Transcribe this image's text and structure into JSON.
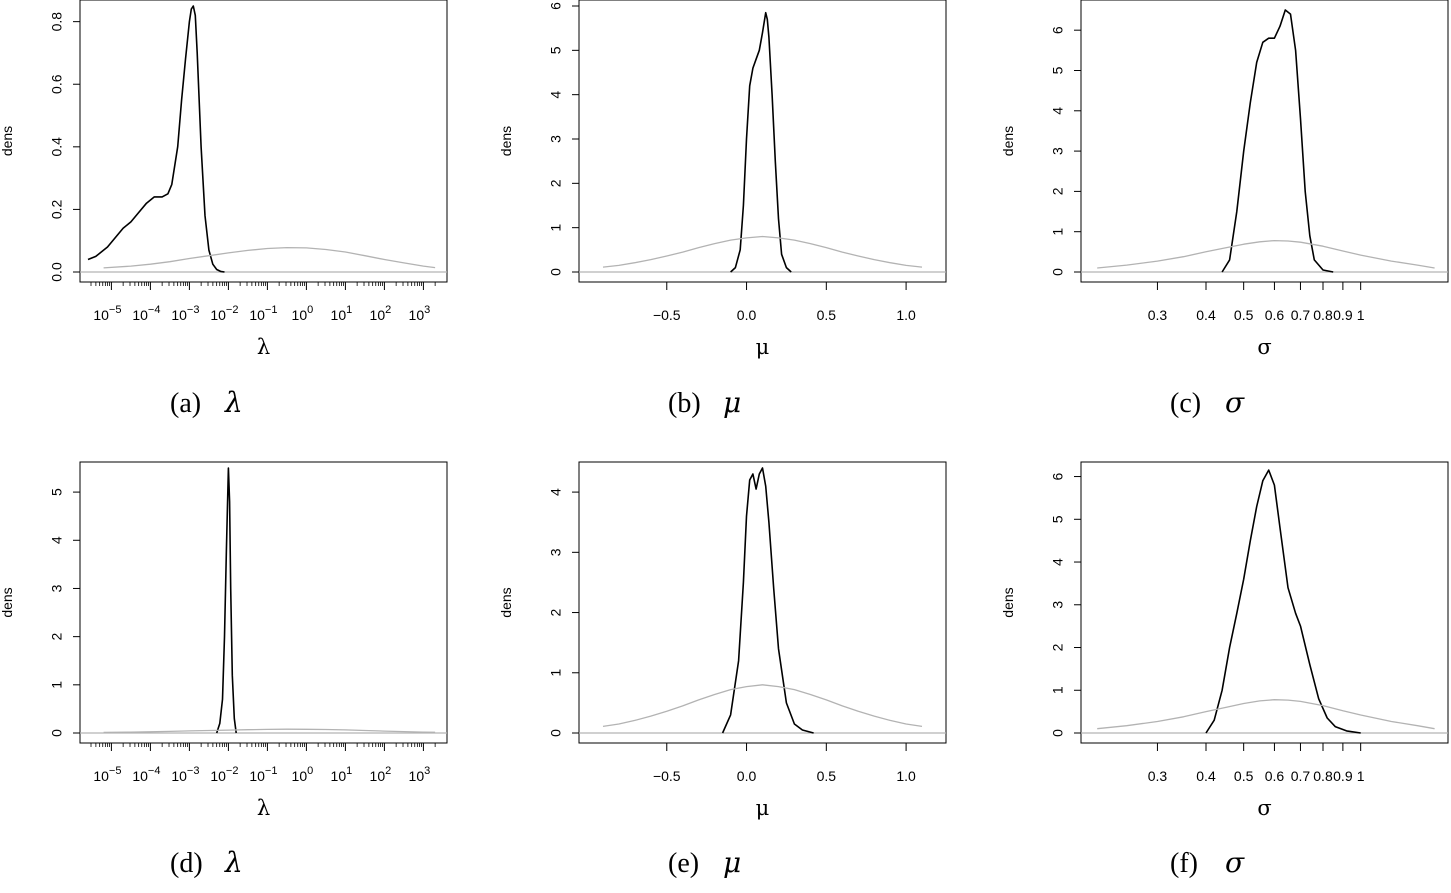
{
  "chart_data": [
    {
      "type": "line",
      "panel": "a",
      "caption_label": "(a)",
      "caption_symbol": "λ",
      "xlabel": "λ",
      "ylabel": "dens",
      "xscale": "log10",
      "xlim": [
        -5.6,
        3.4
      ],
      "ylim": [
        0,
        0.85
      ],
      "yticks": [
        0.0,
        0.2,
        0.4,
        0.6,
        0.8
      ],
      "ytick_labels": [
        "0.0",
        "0.2",
        "0.4",
        "0.6",
        "0.8"
      ],
      "xticks": [
        -5,
        -4,
        -3,
        -2,
        -1,
        0,
        1,
        2,
        3
      ],
      "xtick_bases": [
        "10",
        "10",
        "10",
        "10",
        "10",
        "10",
        "10",
        "10",
        "10"
      ],
      "xtick_exps": [
        "−5",
        "−4",
        "−3",
        "−2",
        "−1",
        "0",
        "1",
        "2",
        "3"
      ],
      "series": [
        {
          "role": "posterior",
          "color": "#000000",
          "x": [
            -5.6,
            -5.4,
            -5.1,
            -4.9,
            -4.7,
            -4.5,
            -4.3,
            -4.1,
            -3.9,
            -3.7,
            -3.55,
            -3.45,
            -3.3,
            -3.2,
            -3.1,
            -3.0,
            -2.95,
            -2.9,
            -2.85,
            -2.8,
            -2.7,
            -2.6,
            -2.5,
            -2.4,
            -2.3,
            -2.2,
            -2.1
          ],
          "y": [
            0.04,
            0.05,
            0.08,
            0.11,
            0.14,
            0.16,
            0.19,
            0.22,
            0.24,
            0.24,
            0.25,
            0.28,
            0.4,
            0.55,
            0.68,
            0.8,
            0.84,
            0.85,
            0.82,
            0.7,
            0.4,
            0.18,
            0.07,
            0.025,
            0.008,
            0.002,
            0.0
          ]
        },
        {
          "role": "prior",
          "color": "#b3b3b3",
          "x": [
            -5.2,
            -4.5,
            -4,
            -3.5,
            -3,
            -2.5,
            -2,
            -1.5,
            -1,
            -0.5,
            0,
            0.5,
            1,
            1.5,
            2,
            2.5,
            3,
            3.3
          ],
          "y": [
            0.013,
            0.019,
            0.025,
            0.033,
            0.043,
            0.052,
            0.061,
            0.069,
            0.075,
            0.078,
            0.077,
            0.072,
            0.064,
            0.052,
            0.04,
            0.029,
            0.019,
            0.014
          ]
        }
      ]
    },
    {
      "type": "line",
      "panel": "b",
      "caption_label": "(b)",
      "caption_symbol": "μ",
      "xlabel": "μ",
      "ylabel": "dens",
      "xscale": "linear",
      "xlim": [
        -1.0,
        1.2
      ],
      "ylim": [
        0,
        6
      ],
      "yticks": [
        0,
        1,
        2,
        3,
        4,
        5,
        6
      ],
      "ytick_labels": [
        "0",
        "1",
        "2",
        "3",
        "4",
        "5",
        "6"
      ],
      "xticks": [
        -0.5,
        0.0,
        0.5,
        1.0
      ],
      "xtick_labels": [
        "−0.5",
        "0.0",
        "0.5",
        "1.0"
      ],
      "series": [
        {
          "role": "posterior",
          "color": "#000000",
          "x": [
            -0.1,
            -0.07,
            -0.04,
            -0.02,
            0.0,
            0.02,
            0.04,
            0.06,
            0.08,
            0.1,
            0.12,
            0.13,
            0.14,
            0.16,
            0.18,
            0.2,
            0.22,
            0.25,
            0.28
          ],
          "y": [
            0.0,
            0.1,
            0.5,
            1.5,
            3.0,
            4.2,
            4.6,
            4.8,
            5.0,
            5.4,
            5.85,
            5.7,
            5.3,
            4.0,
            2.5,
            1.2,
            0.4,
            0.1,
            0.0
          ]
        },
        {
          "role": "prior",
          "color": "#b3b3b3",
          "x": [
            -0.9,
            -0.8,
            -0.7,
            -0.6,
            -0.5,
            -0.4,
            -0.3,
            -0.2,
            -0.1,
            0,
            0.1,
            0.2,
            0.3,
            0.4,
            0.5,
            0.6,
            0.7,
            0.8,
            0.9,
            1.0,
            1.1
          ],
          "y": [
            0.11,
            0.15,
            0.21,
            0.28,
            0.36,
            0.45,
            0.55,
            0.64,
            0.72,
            0.77,
            0.8,
            0.77,
            0.72,
            0.64,
            0.55,
            0.45,
            0.36,
            0.28,
            0.21,
            0.15,
            0.11
          ]
        }
      ]
    },
    {
      "type": "line",
      "panel": "c",
      "caption_label": "(c)",
      "caption_symbol": "σ",
      "xlabel": "σ",
      "ylabel": "dens",
      "xscale": "log",
      "xlim": [
        0.2,
        1.6
      ],
      "ylim": [
        0,
        6.6
      ],
      "yticks": [
        0,
        1,
        2,
        3,
        4,
        5,
        6
      ],
      "ytick_labels": [
        "0",
        "1",
        "2",
        "3",
        "4",
        "5",
        "6"
      ],
      "xticks": [
        0.3,
        0.4,
        0.5,
        0.6,
        0.7,
        0.8,
        0.9,
        1
      ],
      "xtick_labels": [
        "0.3",
        "0.4",
        "0.5",
        "0.6",
        "0.7",
        "0.8",
        "0.9",
        "1"
      ],
      "series": [
        {
          "role": "posterior",
          "color": "#000000",
          "x": [
            0.44,
            0.46,
            0.48,
            0.5,
            0.52,
            0.54,
            0.56,
            0.58,
            0.6,
            0.62,
            0.64,
            0.66,
            0.68,
            0.7,
            0.72,
            0.74,
            0.76,
            0.8,
            0.85
          ],
          "y": [
            0.0,
            0.3,
            1.5,
            3.0,
            4.2,
            5.2,
            5.7,
            5.8,
            5.8,
            6.1,
            6.5,
            6.4,
            5.5,
            3.8,
            2.0,
            0.9,
            0.3,
            0.05,
            0.0
          ]
        },
        {
          "role": "prior",
          "color": "#b3b3b3",
          "x": [
            0.21,
            0.25,
            0.3,
            0.35,
            0.4,
            0.45,
            0.5,
            0.55,
            0.6,
            0.65,
            0.7,
            0.8,
            0.9,
            1.0,
            1.2,
            1.4,
            1.55
          ],
          "y": [
            0.1,
            0.17,
            0.27,
            0.38,
            0.5,
            0.6,
            0.69,
            0.75,
            0.78,
            0.77,
            0.74,
            0.64,
            0.52,
            0.42,
            0.27,
            0.17,
            0.1
          ]
        }
      ]
    },
    {
      "type": "line",
      "panel": "d",
      "caption_label": "(d)",
      "caption_symbol": "λ",
      "xlabel": "λ",
      "ylabel": "dens",
      "xscale": "log10",
      "xlim": [
        -5.6,
        3.4
      ],
      "ylim": [
        0,
        5.5
      ],
      "yticks": [
        0,
        1,
        2,
        3,
        4,
        5
      ],
      "ytick_labels": [
        "0",
        "1",
        "2",
        "3",
        "4",
        "5"
      ],
      "xticks": [
        -5,
        -4,
        -3,
        -2,
        -1,
        0,
        1,
        2,
        3
      ],
      "xtick_bases": [
        "10",
        "10",
        "10",
        "10",
        "10",
        "10",
        "10",
        "10",
        "10"
      ],
      "xtick_exps": [
        "−5",
        "−4",
        "−3",
        "−2",
        "−1",
        "0",
        "1",
        "2",
        "3"
      ],
      "series": [
        {
          "role": "posterior",
          "color": "#000000",
          "x": [
            -2.3,
            -2.22,
            -2.15,
            -2.1,
            -2.05,
            -2.0,
            -1.97,
            -1.94,
            -1.9,
            -1.85,
            -1.8
          ],
          "y": [
            0.0,
            0.2,
            0.7,
            2.0,
            3.8,
            5.5,
            4.8,
            3.0,
            1.2,
            0.3,
            0.0
          ]
        },
        {
          "role": "prior",
          "color": "#b3b3b3",
          "x": [
            -5.2,
            -4.5,
            -4,
            -3.5,
            -3,
            -2.5,
            -2,
            -1.5,
            -1,
            -0.5,
            0,
            0.5,
            1,
            1.5,
            2,
            2.5,
            3,
            3.3
          ],
          "y": [
            0.013,
            0.019,
            0.025,
            0.033,
            0.043,
            0.052,
            0.061,
            0.069,
            0.075,
            0.078,
            0.077,
            0.072,
            0.064,
            0.052,
            0.04,
            0.029,
            0.019,
            0.014
          ]
        }
      ]
    },
    {
      "type": "line",
      "panel": "e",
      "caption_label": "(e)",
      "caption_symbol": "μ",
      "xlabel": "μ",
      "ylabel": "dens",
      "xscale": "linear",
      "xlim": [
        -1.0,
        1.2
      ],
      "ylim": [
        0,
        4.4
      ],
      "yticks": [
        0,
        1,
        2,
        3,
        4
      ],
      "ytick_labels": [
        "0",
        "1",
        "2",
        "3",
        "4"
      ],
      "xticks": [
        -0.5,
        0.0,
        0.5,
        1.0
      ],
      "xtick_labels": [
        "−0.5",
        "0.0",
        "0.5",
        "1.0"
      ],
      "series": [
        {
          "role": "posterior",
          "color": "#000000",
          "x": [
            -0.15,
            -0.1,
            -0.05,
            -0.02,
            0.0,
            0.02,
            0.04,
            0.06,
            0.08,
            0.1,
            0.12,
            0.14,
            0.17,
            0.2,
            0.25,
            0.3,
            0.35,
            0.42
          ],
          "y": [
            0.0,
            0.3,
            1.2,
            2.5,
            3.6,
            4.2,
            4.3,
            4.05,
            4.3,
            4.4,
            4.1,
            3.5,
            2.4,
            1.4,
            0.5,
            0.15,
            0.05,
            0.0
          ]
        },
        {
          "role": "prior",
          "color": "#b3b3b3",
          "x": [
            -0.9,
            -0.8,
            -0.7,
            -0.6,
            -0.5,
            -0.4,
            -0.3,
            -0.2,
            -0.1,
            0,
            0.1,
            0.2,
            0.3,
            0.4,
            0.5,
            0.6,
            0.7,
            0.8,
            0.9,
            1.0,
            1.1
          ],
          "y": [
            0.11,
            0.15,
            0.21,
            0.28,
            0.36,
            0.45,
            0.55,
            0.64,
            0.72,
            0.77,
            0.8,
            0.77,
            0.72,
            0.64,
            0.55,
            0.45,
            0.36,
            0.28,
            0.21,
            0.15,
            0.11
          ]
        }
      ]
    },
    {
      "type": "line",
      "panel": "f",
      "caption_label": "(f)",
      "caption_symbol": "σ",
      "xlabel": "σ",
      "ylabel": "dens",
      "xscale": "log",
      "xlim": [
        0.2,
        1.6
      ],
      "ylim": [
        0,
        6.2
      ],
      "yticks": [
        0,
        1,
        2,
        3,
        4,
        5,
        6
      ],
      "ytick_labels": [
        "0",
        "1",
        "2",
        "3",
        "4",
        "5",
        "6"
      ],
      "xticks": [
        0.3,
        0.4,
        0.5,
        0.6,
        0.7,
        0.8,
        0.9,
        1
      ],
      "xtick_labels": [
        "0.3",
        "0.4",
        "0.5",
        "0.6",
        "0.7",
        "0.8",
        "0.9",
        "1"
      ],
      "series": [
        {
          "role": "posterior",
          "color": "#000000",
          "x": [
            0.4,
            0.42,
            0.44,
            0.46,
            0.48,
            0.5,
            0.52,
            0.54,
            0.56,
            0.58,
            0.6,
            0.62,
            0.65,
            0.68,
            0.7,
            0.74,
            0.78,
            0.82,
            0.86,
            0.92,
            1.0
          ],
          "y": [
            0.0,
            0.3,
            1.0,
            2.0,
            2.8,
            3.6,
            4.5,
            5.3,
            5.9,
            6.15,
            5.8,
            4.8,
            3.4,
            2.8,
            2.5,
            1.6,
            0.8,
            0.35,
            0.15,
            0.05,
            0.0
          ]
        },
        {
          "role": "prior",
          "color": "#b3b3b3",
          "x": [
            0.21,
            0.25,
            0.3,
            0.35,
            0.4,
            0.45,
            0.5,
            0.55,
            0.6,
            0.65,
            0.7,
            0.8,
            0.9,
            1.0,
            1.2,
            1.4,
            1.55
          ],
          "y": [
            0.1,
            0.17,
            0.27,
            0.38,
            0.5,
            0.6,
            0.69,
            0.75,
            0.78,
            0.77,
            0.74,
            0.64,
            0.52,
            0.42,
            0.27,
            0.17,
            0.1
          ]
        }
      ]
    }
  ]
}
